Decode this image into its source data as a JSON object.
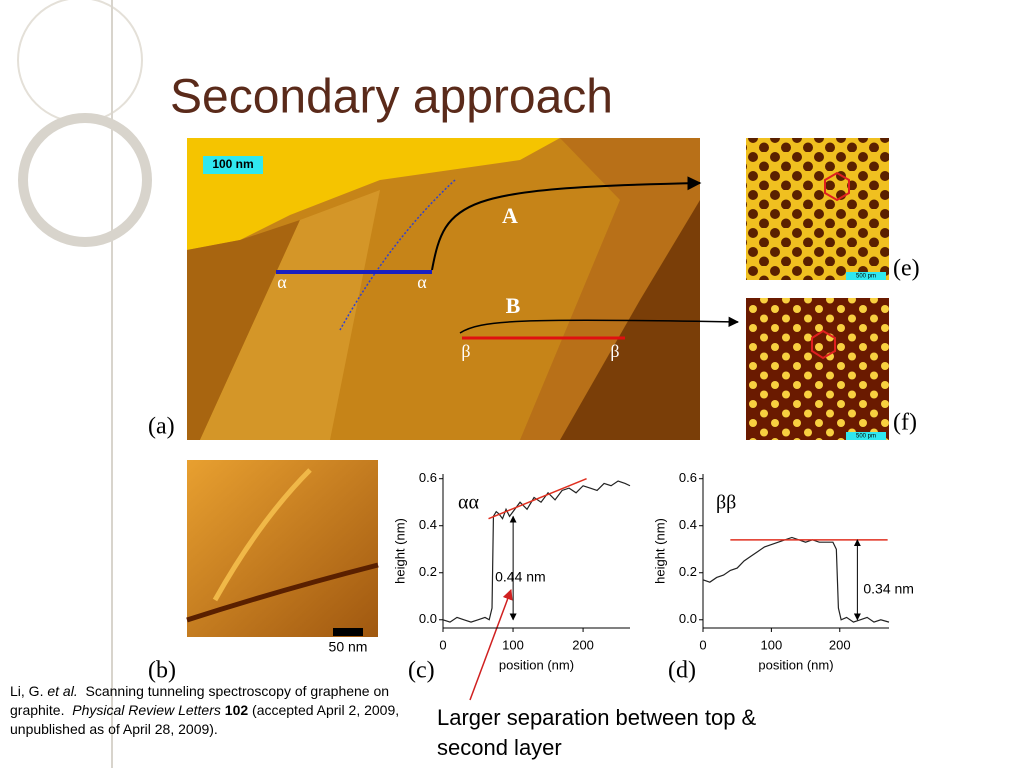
{
  "title": "Secondary approach",
  "figure_a": {
    "scale_bar": "100 nm",
    "label": "(a)",
    "line_a": "A",
    "line_b": "B",
    "alpha_left": "α",
    "alpha_right": "α",
    "beta_left": "β",
    "beta_right": "β"
  },
  "figure_e": {
    "scale_bar": "500 pm",
    "label": "(e)"
  },
  "figure_f": {
    "scale_bar": "500 pm",
    "label": "(f)"
  },
  "figure_b": {
    "scale_bar": "50 nm",
    "label": "(b)"
  },
  "plots": [
    {
      "type": "line",
      "label": "(c)",
      "legend": "αα",
      "xlabel": "position (nm)",
      "ylabel": "height (nm)",
      "xlim": [
        0,
        267
      ],
      "ylim": [
        -0.035,
        0.62
      ],
      "xticks": [
        0,
        100,
        200
      ],
      "yticks": [
        {
          "value": 0,
          "label": "0.0"
        },
        {
          "value": 0.2,
          "label": "0.2"
        },
        {
          "value": 0.4,
          "label": "0.4"
        },
        {
          "value": 0.6,
          "label": "0.6"
        }
      ],
      "x": [
        0,
        10,
        20,
        30,
        40,
        50,
        60,
        66,
        70,
        72,
        76,
        80,
        85,
        90,
        95,
        100,
        110,
        120,
        130,
        140,
        150,
        160,
        170,
        180,
        190,
        200,
        210,
        220,
        230,
        240,
        250,
        260,
        267
      ],
      "values": [
        0.0,
        -0.01,
        0.01,
        0.0,
        -0.01,
        0.0,
        0.01,
        0.0,
        0.05,
        0.44,
        0.46,
        0.45,
        0.43,
        0.47,
        0.44,
        0.46,
        0.5,
        0.47,
        0.52,
        0.5,
        0.54,
        0.51,
        0.55,
        0.56,
        0.54,
        0.57,
        0.56,
        0.55,
        0.58,
        0.57,
        0.59,
        0.58,
        0.57
      ],
      "color": "#222222",
      "fit": {
        "x": [
          65,
          205
        ],
        "values": [
          0.43,
          0.6
        ],
        "color": "#e03020"
      },
      "step": {
        "value": 0.44,
        "label": "0.44 nm"
      }
    },
    {
      "type": "line",
      "label": "(d)",
      "legend": "ββ",
      "xlabel": "position (nm)",
      "ylabel": "height (nm)",
      "xlim": [
        0,
        272
      ],
      "ylim": [
        -0.035,
        0.62
      ],
      "xticks": [
        0,
        100,
        200
      ],
      "yticks": [
        {
          "value": 0,
          "label": "0.0"
        },
        {
          "value": 0.2,
          "label": "0.2"
        },
        {
          "value": 0.4,
          "label": "0.4"
        },
        {
          "value": 0.6,
          "label": "0.6"
        }
      ],
      "x": [
        0,
        10,
        20,
        30,
        40,
        50,
        60,
        70,
        80,
        90,
        100,
        110,
        120,
        130,
        140,
        150,
        160,
        170,
        180,
        190,
        195,
        198,
        202,
        210,
        220,
        230,
        240,
        250,
        260,
        272
      ],
      "values": [
        0.17,
        0.16,
        0.18,
        0.19,
        0.21,
        0.22,
        0.25,
        0.27,
        0.29,
        0.31,
        0.32,
        0.33,
        0.34,
        0.35,
        0.34,
        0.33,
        0.34,
        0.33,
        0.33,
        0.33,
        0.3,
        0.05,
        0.0,
        0.01,
        -0.01,
        0.0,
        0.01,
        -0.01,
        0.0,
        -0.01
      ],
      "color": "#222222",
      "fit": {
        "x": [
          40,
          270
        ],
        "values": [
          0.34,
          0.34
        ],
        "color": "#e03020"
      },
      "step": {
        "value": 0.34,
        "label": "0.34 nm"
      }
    }
  ],
  "citation": {
    "authors": "Li, G.",
    "etal": "et al.",
    "title": "Scanning tunneling spectroscopy of graphene on graphite.",
    "journal": "Physical Review Letters",
    "volume": "102",
    "note": "(accepted April 2, 2009, unpublished as of April 28, 2009)."
  },
  "callout": "Larger separation between top & second layer"
}
